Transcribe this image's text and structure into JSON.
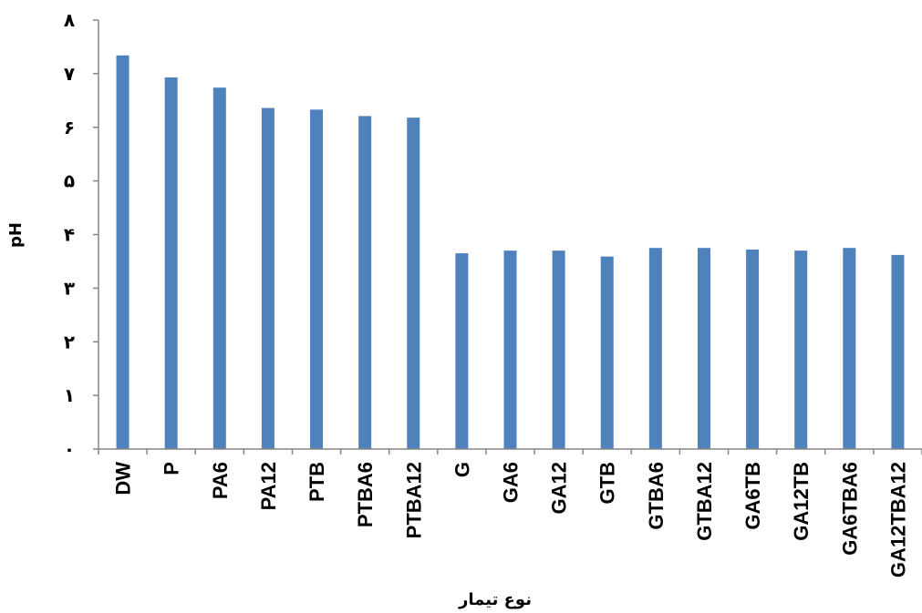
{
  "chart_data": {
    "type": "bar",
    "title": "",
    "xlabel": "نوع تیمار",
    "ylabel": "pH",
    "ylim": [
      0,
      8
    ],
    "yticks": [
      0,
      1,
      2,
      3,
      4,
      5,
      6,
      7,
      8
    ],
    "ytick_labels": [
      "۰",
      "۱",
      "۲",
      "۳",
      "۴",
      "۵",
      "۶",
      "۷",
      "۸"
    ],
    "grid": false,
    "legend": "none",
    "bar_color": "#4F81BD",
    "categories": [
      "DW",
      "P",
      "PA6",
      "PA12",
      "PTB",
      "PTBA6",
      "PTBA12",
      "G",
      "GA6",
      "GA12",
      "GTB",
      "GTBA6",
      "GTBA12",
      "GA6TB",
      "GA12TB",
      "GA6TBA6",
      "GA12TBA12"
    ],
    "values": [
      7.34,
      6.93,
      6.74,
      6.36,
      6.33,
      6.21,
      6.18,
      3.65,
      3.7,
      3.7,
      3.59,
      3.75,
      3.75,
      3.72,
      3.7,
      3.75,
      3.62
    ]
  }
}
